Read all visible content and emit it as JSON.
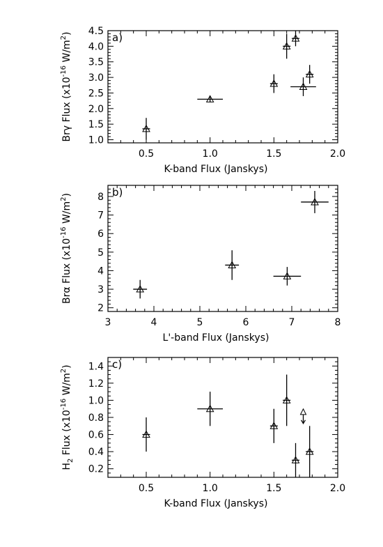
{
  "chart_data": [
    {
      "type": "scatter",
      "panel_label": "a)",
      "xlabel": "K-band Flux (Janskys)",
      "ylabel": {
        "main": "Brγ Flux (x10",
        "exp": "-16",
        "unit": " W/m",
        "unit_exp": "2",
        "close": ")"
      },
      "xlim": [
        0.2,
        2.0
      ],
      "ylim": [
        0.9,
        4.5
      ],
      "xticks": [
        0.5,
        1.0,
        1.5,
        2.0
      ],
      "xtick_labels": [
        "0.5",
        "1.0",
        "1.5",
        "2.0"
      ],
      "yticks": [
        1.0,
        1.5,
        2.0,
        2.5,
        3.0,
        3.5,
        4.0,
        4.5
      ],
      "ytick_labels": [
        "1.0",
        "1.5",
        "2.0",
        "2.5",
        "3.0",
        "3.5",
        "4.0",
        "4.5"
      ],
      "y_minor": 0.1,
      "points": [
        {
          "x": 0.5,
          "y": 1.35,
          "xerr": 0.03,
          "yerr": 0.35
        },
        {
          "x": 1.0,
          "y": 2.3,
          "xerr": 0.1,
          "yerr": 0.1
        },
        {
          "x": 1.5,
          "y": 2.8,
          "xerr": 0.03,
          "yerr": 0.3
        },
        {
          "x": 1.6,
          "y": 4.0,
          "xerr": 0.03,
          "yerr": 0.4
        },
        {
          "x": 1.67,
          "y": 4.25,
          "xerr": 0.03,
          "yerr": 0.25
        },
        {
          "x": 1.73,
          "y": 2.7,
          "xerr": 0.1,
          "yerr": 0.3
        },
        {
          "x": 1.78,
          "y": 3.1,
          "xerr": 0.03,
          "yerr": 0.3
        }
      ]
    },
    {
      "type": "scatter",
      "panel_label": "b)",
      "xlabel": "L'-band Flux (Janskys)",
      "ylabel": {
        "main": "Brα Flux (x10",
        "exp": "-16",
        "unit": " W/m",
        "unit_exp": "2",
        "close": ")"
      },
      "xlim": [
        3,
        8
      ],
      "ylim": [
        1.8,
        8.6
      ],
      "xticks": [
        3,
        4,
        5,
        6,
        7,
        8
      ],
      "xtick_labels": [
        "3",
        "4",
        "5",
        "6",
        "7",
        "8"
      ],
      "yticks": [
        2,
        3,
        4,
        5,
        6,
        7,
        8
      ],
      "ytick_labels": [
        "2",
        "3",
        "4",
        "5",
        "6",
        "7",
        "8"
      ],
      "y_minor": 0.2,
      "points": [
        {
          "x": 3.7,
          "y": 3.0,
          "xerr": 0.15,
          "yerr": 0.5
        },
        {
          "x": 5.7,
          "y": 4.3,
          "xerr": 0.15,
          "yerr": 0.8
        },
        {
          "x": 6.9,
          "y": 3.7,
          "xerr": 0.3,
          "yerr": 0.5
        },
        {
          "x": 7.5,
          "y": 7.7,
          "xerr": 0.3,
          "yerr": 0.6
        }
      ]
    },
    {
      "type": "scatter",
      "panel_label": "c)",
      "xlabel": "K-band Flux (Janskys)",
      "ylabel": {
        "main": "H",
        "sub": "2",
        "main2": " Flux (x10",
        "exp": "-16",
        "unit": " W/m",
        "unit_exp": "2",
        "close": ")"
      },
      "xlim": [
        0.2,
        2.0
      ],
      "ylim": [
        0.1,
        1.5
      ],
      "xticks": [
        0.5,
        1.0,
        1.5,
        2.0
      ],
      "xtick_labels": [
        "0.5",
        "1.0",
        "1.5",
        "2.0"
      ],
      "yticks": [
        0.2,
        0.4,
        0.6,
        0.8,
        1.0,
        1.2,
        1.4
      ],
      "ytick_labels": [
        "0.2",
        "0.4",
        "0.6",
        "0.8",
        "1.0",
        "1.2",
        "1.4"
      ],
      "y_minor": 0.05,
      "points": [
        {
          "x": 0.5,
          "y": 0.6,
          "xerr": 0.03,
          "yerr": 0.2
        },
        {
          "x": 1.0,
          "y": 0.9,
          "xerr": 0.1,
          "yerr": 0.2
        },
        {
          "x": 1.5,
          "y": 0.7,
          "xerr": 0.03,
          "yerr": 0.2
        },
        {
          "x": 1.6,
          "y": 1.0,
          "xerr": 0.03,
          "yerr": 0.3
        },
        {
          "x": 1.67,
          "y": 0.3,
          "xerr": 0.03,
          "yerr": 0.2
        },
        {
          "x": 1.78,
          "y": 0.4,
          "xerr": 0.03,
          "yerr": 0.3
        }
      ],
      "limits": [
        {
          "x": 1.73,
          "y": 0.85,
          "kind": "upper-limit-arrow"
        }
      ]
    }
  ]
}
